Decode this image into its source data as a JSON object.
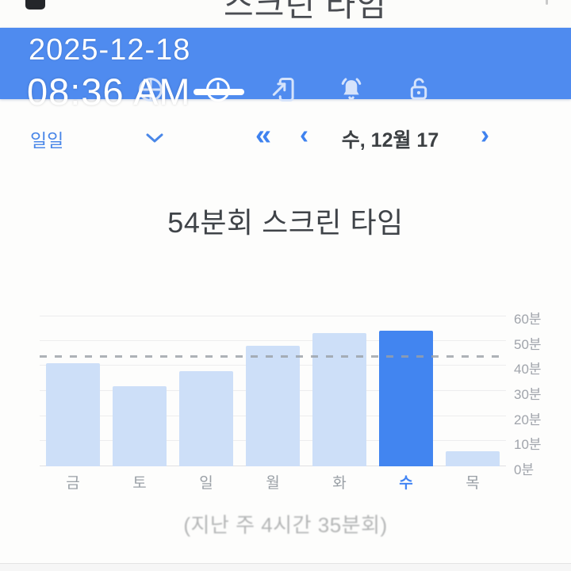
{
  "status_strip": {
    "clipped_app_title": "스크린 타임"
  },
  "overlay": {
    "date": "2025-12-18",
    "time": "08:36 AM"
  },
  "toolbar": {
    "icons": [
      {
        "id": "usage",
        "icon": "pie-chart-icon",
        "selected": false
      },
      {
        "id": "screen-time",
        "icon": "clock-icon",
        "selected": true
      },
      {
        "id": "app-launches",
        "icon": "phone-arrow-icon",
        "selected": false
      },
      {
        "id": "notifications",
        "icon": "bell-icon",
        "selected": false
      },
      {
        "id": "unlocks",
        "icon": "unlock-icon",
        "selected": false
      }
    ]
  },
  "nav": {
    "period": "일일",
    "chevron_double_left": "«",
    "chevron_left": "‹",
    "date": "수, 12월 17",
    "chevron_right": "›"
  },
  "summary": {
    "title": "54분회 스크린 타임",
    "caption": "(지난 주 4시간 35분회)"
  },
  "chart_data": {
    "type": "bar",
    "title": "54분회 스크린 타임",
    "categories": [
      "금",
      "토",
      "일",
      "월",
      "화",
      "수",
      "목"
    ],
    "values": [
      41,
      32,
      38,
      48,
      53,
      54,
      6
    ],
    "unit": "분",
    "selected_index": 5,
    "ylim": [
      0,
      60
    ],
    "ytick_step": 10,
    "ytick_labels": [
      "0분",
      "10분",
      "20분",
      "30분",
      "40분",
      "50분",
      "60분"
    ],
    "average_line": 44,
    "grid": true,
    "legend": false,
    "axis_side": "right",
    "colors": {
      "bar": "#cddff8",
      "bar_selected": "#4285f0",
      "grid": "#ededee",
      "axis_label": "#a0a4ab",
      "selected_label": "#4285f4",
      "average_line": "#9aa0a6"
    }
  },
  "colors": {
    "banner": "#4f8bef",
    "accent": "#4a87e8",
    "text_dark": "#3c4043"
  }
}
